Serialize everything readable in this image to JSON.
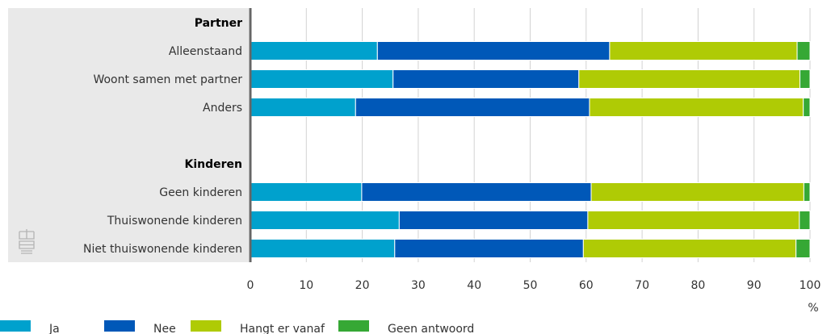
{
  "chart_data": {
    "type": "bar",
    "orientation": "horizontal",
    "stacked": true,
    "groups": [
      {
        "label": "Partner",
        "rows": [
          {
            "category": "Alleenstaand",
            "values": [
              22.7,
              41.5,
              33.5,
              2.3
            ]
          },
          {
            "category": "Woont samen met partner",
            "values": [
              25.5,
              33.2,
              39.5,
              1.8
            ]
          },
          {
            "category": "Anders",
            "values": [
              18.8,
              41.8,
              38.2,
              1.2
            ]
          }
        ]
      },
      {
        "label": "Kinderen",
        "rows": [
          {
            "category": "Geen kinderen",
            "values": [
              19.9,
              41.0,
              38.0,
              1.1
            ]
          },
          {
            "category": "Thuiswonende kinderen",
            "values": [
              26.6,
              33.7,
              37.8,
              1.9
            ]
          },
          {
            "category": "Niet thuiswonende kinderen",
            "values": [
              25.8,
              33.7,
              38.0,
              2.5
            ]
          }
        ]
      }
    ],
    "series": [
      {
        "name": "Ja",
        "color": "#00a1cd"
      },
      {
        "name": "Nee",
        "color": "#0058b8"
      },
      {
        "name": "Hangt er vanaf",
        "color": "#afcb05"
      },
      {
        "name": "Geen antwoord",
        "color": "#36a835"
      }
    ],
    "xlim": [
      0,
      100
    ],
    "xticks": [
      "0",
      "10",
      "20",
      "30",
      "40",
      "50",
      "60",
      "70",
      "80",
      "90",
      "100"
    ],
    "unit": "%",
    "grid": true,
    "legend_position": "bottom-left"
  },
  "logo": {
    "icon": "cbs-logo-icon"
  }
}
